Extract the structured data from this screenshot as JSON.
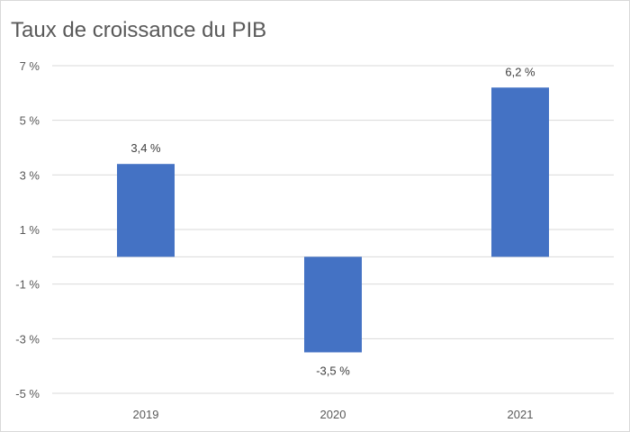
{
  "chart_data": {
    "type": "bar",
    "title": "Taux de croissance du PIB",
    "categories": [
      "2019",
      "2020",
      "2021"
    ],
    "values": [
      3.4,
      -3.5,
      6.2
    ],
    "data_labels": [
      "3,4 %",
      "-3,5 %",
      "6,2 %"
    ],
    "ylim": [
      -5,
      7
    ],
    "yticks": [
      7,
      5,
      3,
      1,
      -1,
      -3,
      -5
    ],
    "ytick_labels": [
      "7 %",
      "5 %",
      "3 %",
      "1 %",
      "-1 %",
      "-3 %",
      "-5 %"
    ],
    "grid": true,
    "bar_color": "#4472C4",
    "grid_color": "#d9d9d9"
  }
}
